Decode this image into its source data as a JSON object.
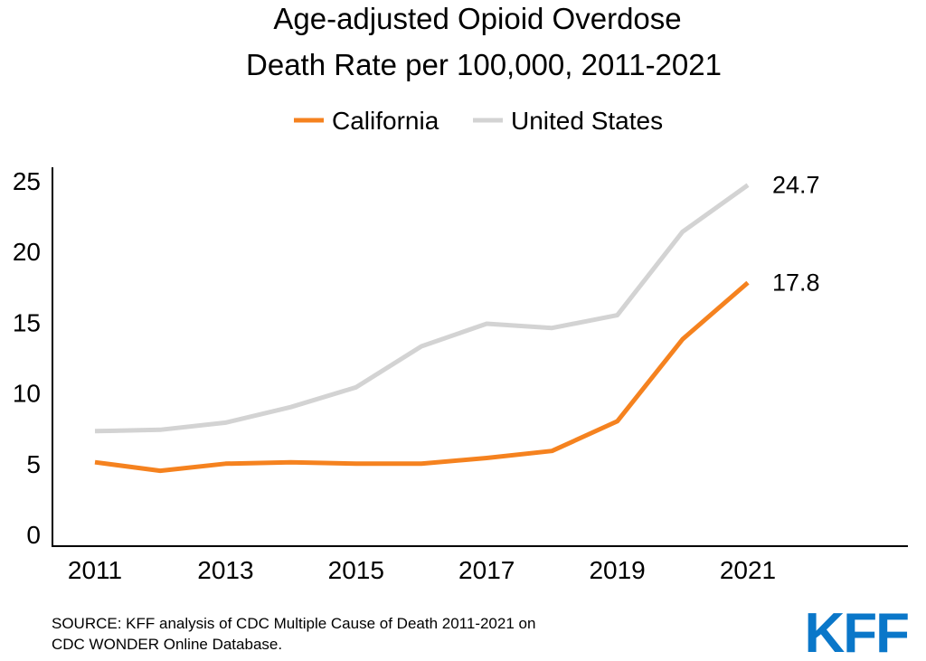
{
  "chart_data": {
    "type": "line",
    "title": "Age-adjusted Opioid Overdose Death Rate per 100,000, 2011-2021",
    "title_lines": [
      "Age-adjusted Opioid Overdose",
      "Death Rate per 100,000, 2011-2021"
    ],
    "xlabel": "",
    "ylabel": "",
    "x": [
      2011,
      2012,
      2013,
      2014,
      2015,
      2016,
      2017,
      2018,
      2019,
      2020,
      2021
    ],
    "x_tick_labels": [
      "2011",
      "2013",
      "2015",
      "2017",
      "2019",
      "2021"
    ],
    "y_tick_labels": [
      "0",
      "5",
      "10",
      "15",
      "20",
      "25"
    ],
    "ylim": [
      0,
      25
    ],
    "grid": false,
    "legend_position": "top",
    "series": [
      {
        "name": "California",
        "color": "#f5821f",
        "values": [
          5.1,
          4.5,
          5.0,
          5.1,
          5.0,
          5.0,
          5.4,
          5.9,
          8.0,
          13.8,
          17.8
        ],
        "end_label": "17.8"
      },
      {
        "name": "United States",
        "color": "#d3d3d3",
        "values": [
          7.3,
          7.4,
          7.9,
          9.0,
          10.4,
          13.3,
          14.9,
          14.6,
          15.5,
          21.4,
          24.7
        ],
        "end_label": "24.7"
      }
    ]
  },
  "footer": {
    "source_lines": [
      "SOURCE: KFF analysis of CDC Multiple Cause of Death 2011-2021 on",
      "CDC WONDER Online Database."
    ],
    "logo_text": "KFF",
    "logo_color": "#0a77c9"
  }
}
